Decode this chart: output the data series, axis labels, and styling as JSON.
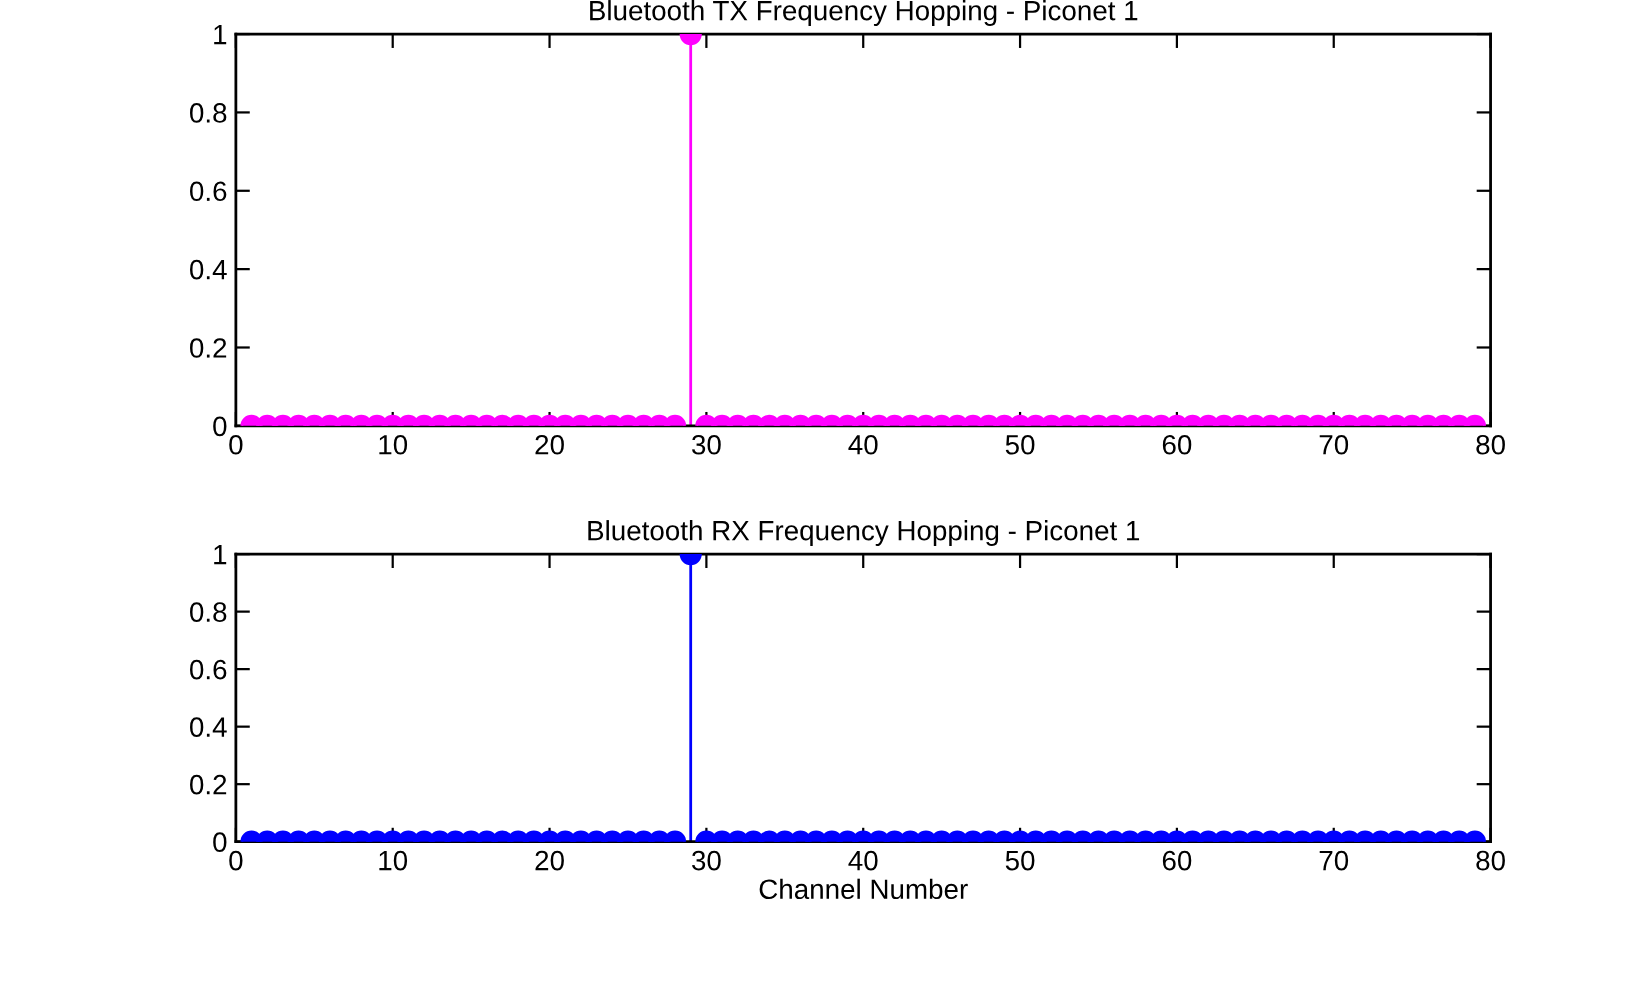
{
  "chart_data": [
    {
      "type": "lollipop",
      "title": "Bluetooth TX Frequency Hopping - Piconet 1",
      "x": [
        1,
        2,
        3,
        4,
        5,
        6,
        7,
        8,
        9,
        10,
        11,
        12,
        13,
        14,
        15,
        16,
        17,
        18,
        19,
        20,
        21,
        22,
        23,
        24,
        25,
        26,
        27,
        28,
        29,
        30,
        31,
        32,
        33,
        34,
        35,
        36,
        37,
        38,
        39,
        40,
        41,
        42,
        43,
        44,
        45,
        46,
        47,
        48,
        49,
        50,
        51,
        52,
        53,
        54,
        55,
        56,
        57,
        58,
        59,
        60,
        61,
        62,
        63,
        64,
        65,
        66,
        67,
        68,
        69,
        70,
        71,
        72,
        73,
        74,
        75,
        76,
        77,
        78,
        79
      ],
      "values": [
        0,
        0,
        0,
        0,
        0,
        0,
        0,
        0,
        0,
        0,
        0,
        0,
        0,
        0,
        0,
        0,
        0,
        0,
        0,
        0,
        0,
        0,
        0,
        0,
        0,
        0,
        0,
        0,
        1,
        0,
        0,
        0,
        0,
        0,
        0,
        0,
        0,
        0,
        0,
        0,
        0,
        0,
        0,
        0,
        0,
        0,
        0,
        0,
        0,
        0,
        0,
        0,
        0,
        0,
        0,
        0,
        0,
        0,
        0,
        0,
        0,
        0,
        0,
        0,
        0,
        0,
        0,
        0,
        0,
        0,
        0,
        0,
        0,
        0,
        0,
        0,
        0,
        0,
        0
      ],
      "color": "#ff00ff",
      "marker": "circle",
      "xlim": [
        0,
        80
      ],
      "xticks": [
        0,
        10,
        20,
        30,
        40,
        50,
        60,
        70,
        80
      ],
      "ylim": [
        0,
        1
      ],
      "yticks": [
        0,
        0.2,
        0.4,
        0.6,
        0.8,
        1
      ],
      "grid": false,
      "legend": false
    },
    {
      "type": "lollipop",
      "title": "Bluetooth RX Frequency Hopping - Piconet 1",
      "xlabel": "Channel Number",
      "x": [
        1,
        2,
        3,
        4,
        5,
        6,
        7,
        8,
        9,
        10,
        11,
        12,
        13,
        14,
        15,
        16,
        17,
        18,
        19,
        20,
        21,
        22,
        23,
        24,
        25,
        26,
        27,
        28,
        29,
        30,
        31,
        32,
        33,
        34,
        35,
        36,
        37,
        38,
        39,
        40,
        41,
        42,
        43,
        44,
        45,
        46,
        47,
        48,
        49,
        50,
        51,
        52,
        53,
        54,
        55,
        56,
        57,
        58,
        59,
        60,
        61,
        62,
        63,
        64,
        65,
        66,
        67,
        68,
        69,
        70,
        71,
        72,
        73,
        74,
        75,
        76,
        77,
        78,
        79
      ],
      "values": [
        0,
        0,
        0,
        0,
        0,
        0,
        0,
        0,
        0,
        0,
        0,
        0,
        0,
        0,
        0,
        0,
        0,
        0,
        0,
        0,
        0,
        0,
        0,
        0,
        0,
        0,
        0,
        0,
        1,
        0,
        0,
        0,
        0,
        0,
        0,
        0,
        0,
        0,
        0,
        0,
        0,
        0,
        0,
        0,
        0,
        0,
        0,
        0,
        0,
        0,
        0,
        0,
        0,
        0,
        0,
        0,
        0,
        0,
        0,
        0,
        0,
        0,
        0,
        0,
        0,
        0,
        0,
        0,
        0,
        0,
        0,
        0,
        0,
        0,
        0,
        0,
        0,
        0,
        0
      ],
      "color": "#0000ff",
      "marker": "circle",
      "xlim": [
        0,
        80
      ],
      "xticks": [
        0,
        10,
        20,
        30,
        40,
        50,
        60,
        70,
        80
      ],
      "ylim": [
        0,
        1
      ],
      "yticks": [
        0,
        0.2,
        0.4,
        0.6,
        0.8,
        1
      ],
      "grid": false,
      "legend": false
    }
  ]
}
